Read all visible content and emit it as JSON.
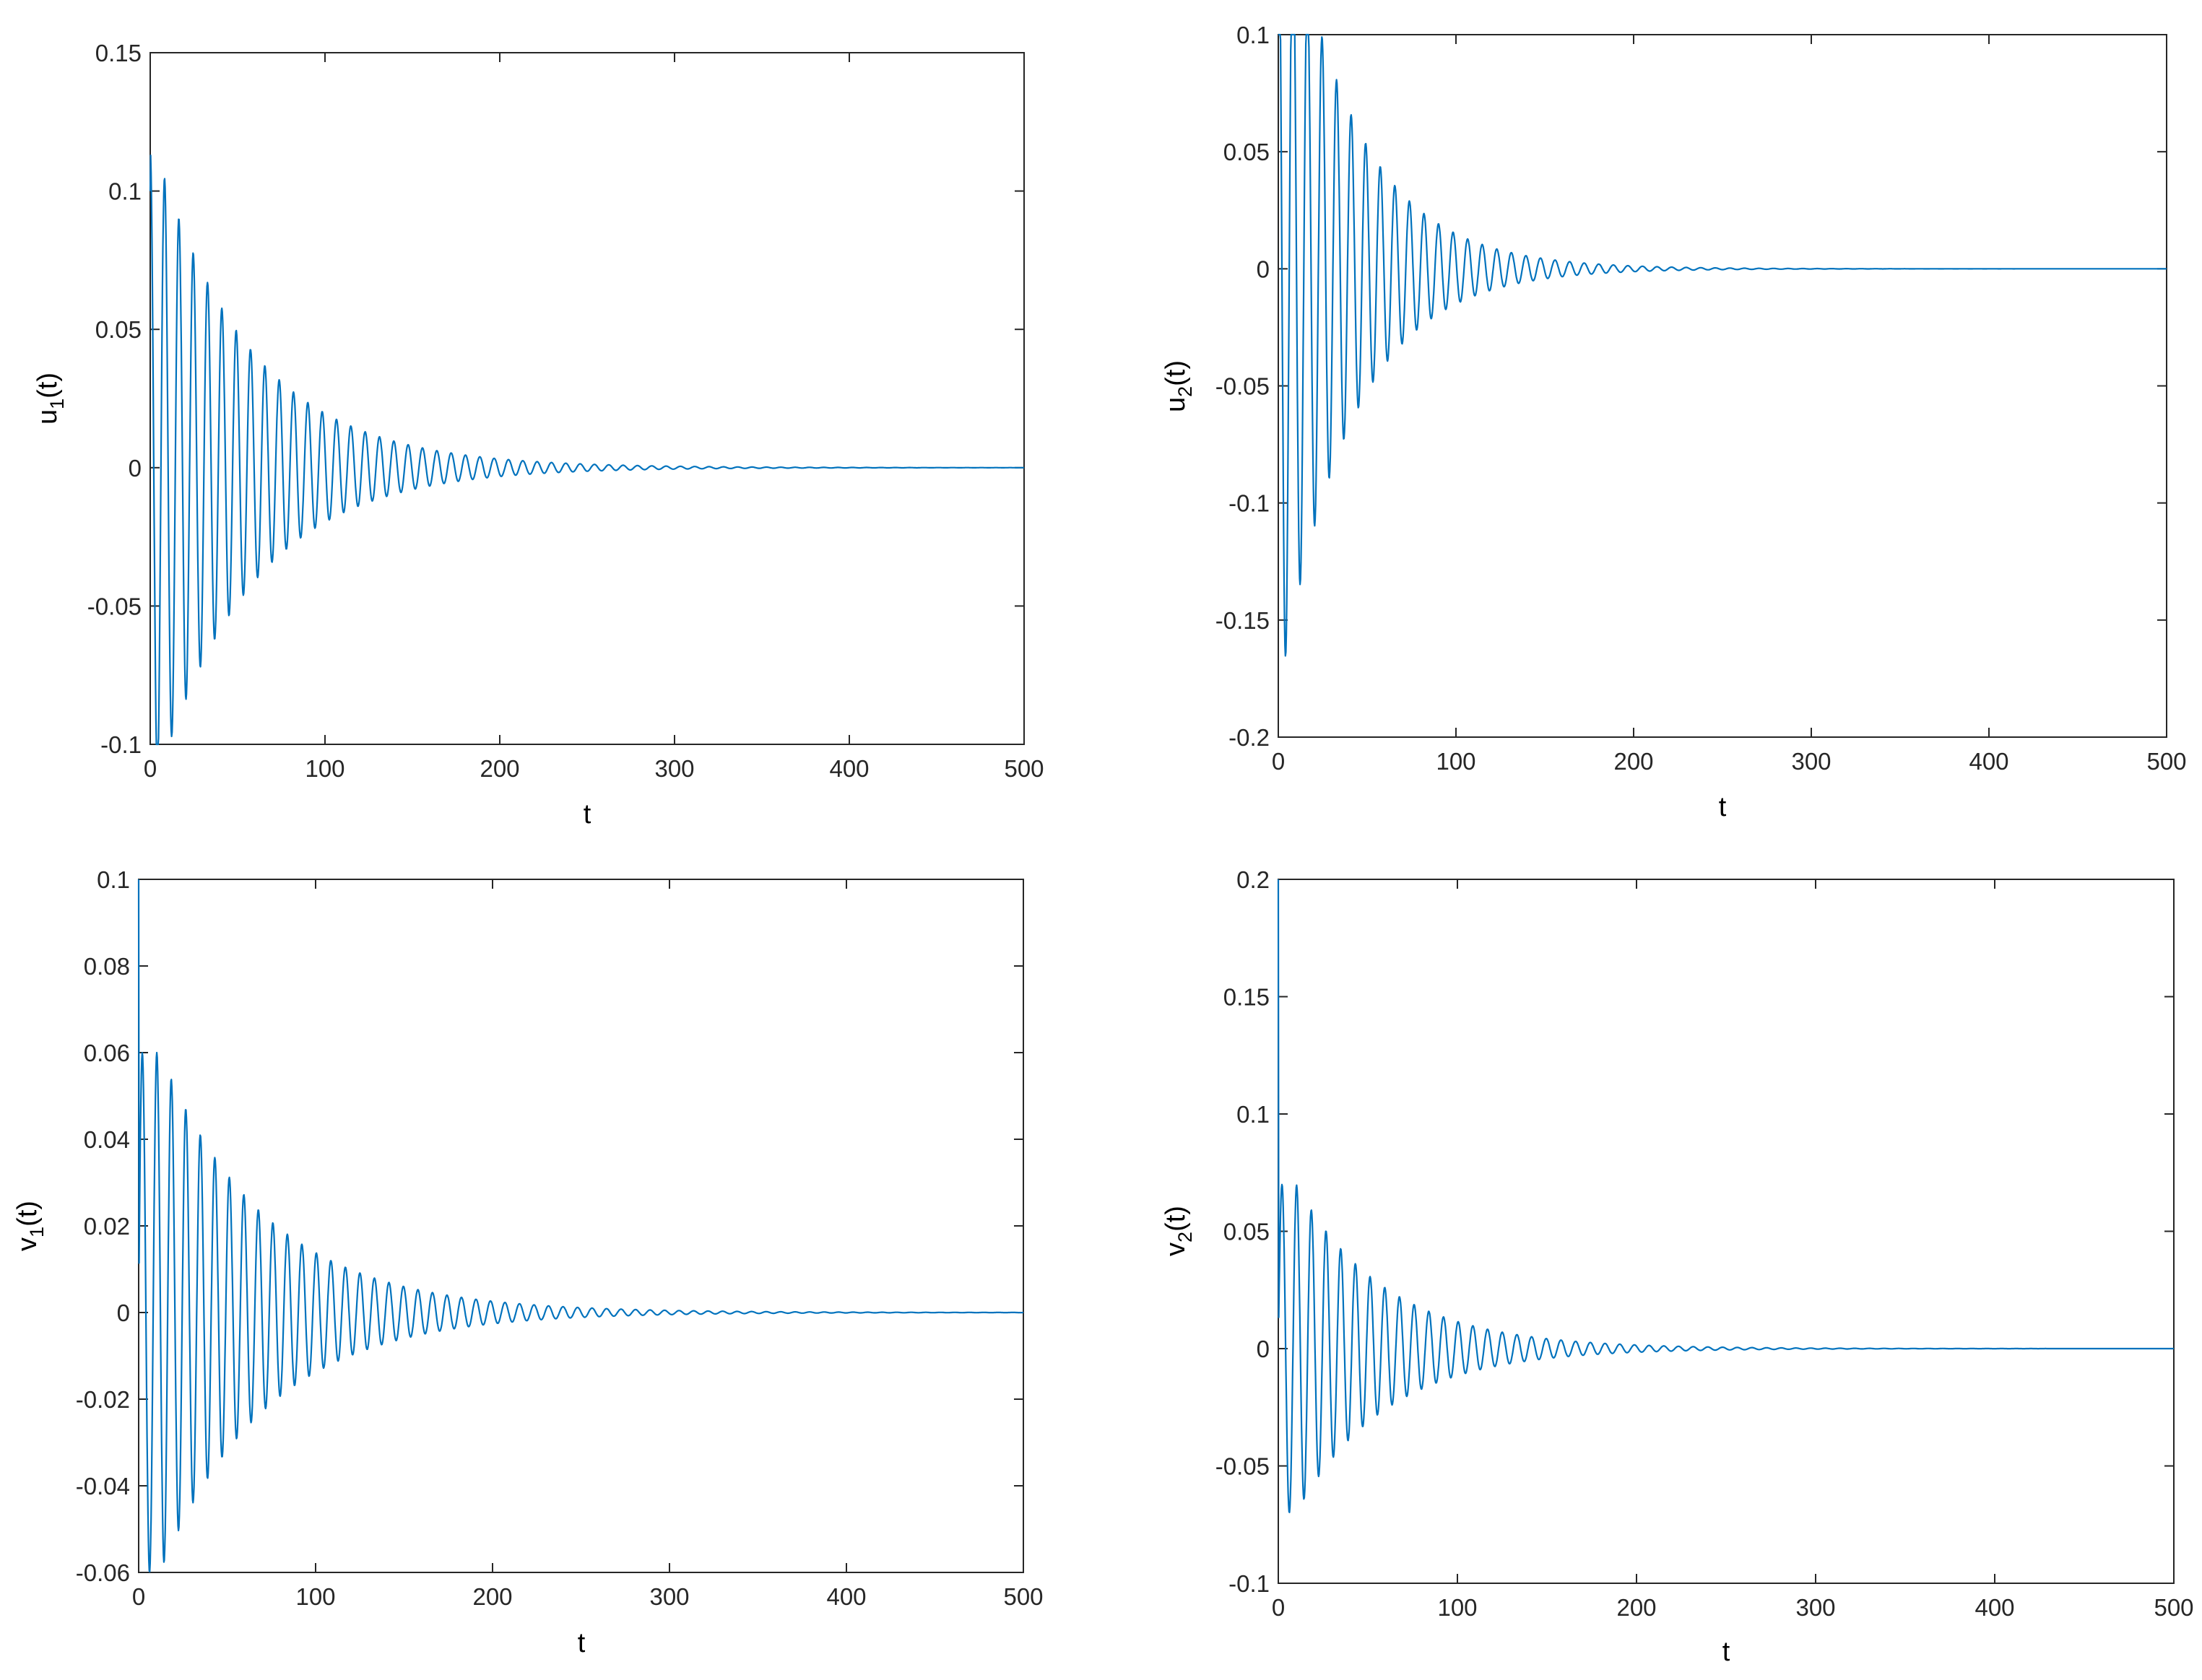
{
  "chart_data": [
    {
      "type": "line",
      "xlabel": "t",
      "ylabel": {
        "base": "u",
        "sub": "1",
        "suffix": "(t)"
      },
      "xlim": [
        0,
        500
      ],
      "ylim": [
        -0.1,
        0.15
      ],
      "xticks": [
        "0",
        "100",
        "200",
        "300",
        "400",
        "500"
      ],
      "yticks": [
        "-0.1",
        "-0.05",
        "0",
        "0.05",
        "0.1",
        "0.15"
      ],
      "series": [
        {
          "color": "#0072BD",
          "x0": 0,
          "y0": 0.1,
          "amplitude": 0.115,
          "tau": 55,
          "period": 8.2,
          "phase": 1.5708,
          "envelope_start": 3,
          "t_max": 500
        }
      ]
    },
    {
      "type": "line",
      "xlabel": "t",
      "ylabel": {
        "base": "u",
        "sub": "2",
        "suffix": "(t)"
      },
      "xlim": [
        0,
        500
      ],
      "ylim": [
        -0.2,
        0.1
      ],
      "xticks": [
        "0",
        "100",
        "200",
        "300",
        "400",
        "500"
      ],
      "yticks": [
        "-0.2",
        "-0.15",
        "-0.1",
        "-0.05",
        "0",
        "0.05",
        "0.1"
      ],
      "series": [
        {
          "color": "#0072BD",
          "x0": 0,
          "y0": 0.1,
          "amplitude": 0.17,
          "tau": 40,
          "period": 8.2,
          "phase": 1.5708,
          "envelope_start": 3,
          "t_max": 500
        }
      ]
    },
    {
      "type": "line",
      "xlabel": "t",
      "ylabel": {
        "base": "v",
        "sub": "1",
        "suffix": "(t)"
      },
      "xlim": [
        0,
        500
      ],
      "ylim": [
        -0.06,
        0.1
      ],
      "xticks": [
        "0",
        "100",
        "200",
        "300",
        "400",
        "500"
      ],
      "yticks": [
        "-0.06",
        "-0.04",
        "-0.02",
        "0",
        "0.02",
        "0.04",
        "0.06",
        "0.08",
        "0.1"
      ],
      "series": [
        {
          "color": "#0072BD",
          "x0": 0,
          "y0": 0.1,
          "amplitude": 0.06,
          "tau": 60,
          "period": 8.2,
          "phase": 0,
          "envelope_start": 12,
          "t_max": 500
        }
      ]
    },
    {
      "type": "line",
      "xlabel": "t",
      "ylabel": {
        "base": "v",
        "sub": "2",
        "suffix": "(t)"
      },
      "xlim": [
        0,
        500
      ],
      "ylim": [
        -0.1,
        0.2
      ],
      "xticks": [
        "0",
        "100",
        "200",
        "300",
        "400",
        "500"
      ],
      "yticks": [
        "-0.1",
        "-0.05",
        "0",
        "0.05",
        "0.1",
        "0.15",
        "0.2"
      ],
      "series": [
        {
          "color": "#0072BD",
          "x0": 0,
          "y0": 0.2,
          "amplitude": 0.07,
          "tau": 50,
          "period": 8.2,
          "phase": 0,
          "envelope_start": 10,
          "t_max": 500
        }
      ]
    }
  ]
}
